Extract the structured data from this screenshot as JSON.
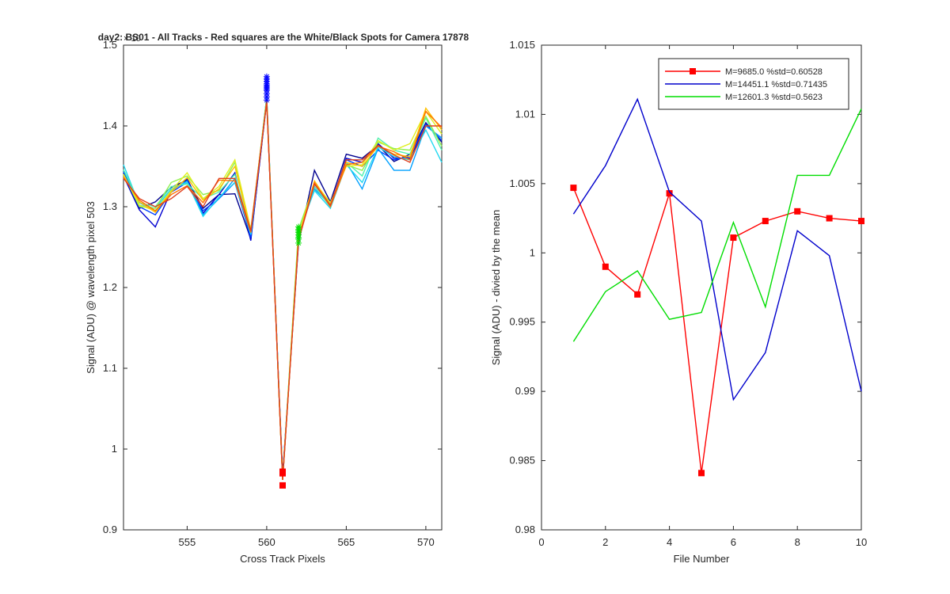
{
  "chart_data": [
    {
      "type": "line",
      "title": "day2: BS01 - All Tracks - Red squares are the  White/Black Spots for Camera 17878",
      "xlabel": "Cross Track Pixels",
      "ylabel": "Signal (ADU) @ wavelength pixel 503",
      "y_exponent_label": "× 10",
      "xlim": [
        551,
        571
      ],
      "ylim": [
        0.9,
        1.5
      ],
      "xticks": [
        555,
        560,
        565,
        570
      ],
      "yticks": [
        0.9,
        1.0,
        1.1,
        1.2,
        1.3,
        1.4,
        1.5
      ],
      "x": [
        551,
        552,
        553,
        554,
        555,
        556,
        557,
        558,
        559,
        560,
        561,
        562,
        563,
        564,
        565,
        566,
        567,
        568,
        569,
        570,
        571
      ],
      "series": [
        {
          "color": "#00008f",
          "values": [
            1.34,
            1.298,
            1.306,
            1.324,
            1.333,
            1.298,
            1.315,
            1.316,
            1.26,
            1.43,
            0.968,
            1.255,
            1.345,
            1.306,
            1.365,
            1.36,
            1.376,
            1.356,
            1.365,
            1.404,
            1.38
          ]
        },
        {
          "color": "#0000d0",
          "values": [
            1.338,
            1.296,
            1.275,
            1.32,
            1.335,
            1.292,
            1.315,
            1.342,
            1.258,
            1.432,
            0.965,
            1.26,
            1.33,
            1.3,
            1.36,
            1.355,
            1.378,
            1.36,
            1.36,
            1.4,
            1.385
          ]
        },
        {
          "color": "#0040ff",
          "values": [
            1.343,
            1.3,
            1.29,
            1.318,
            1.33,
            1.295,
            1.31,
            1.33,
            1.262,
            1.435,
            0.962,
            1.262,
            1.325,
            1.3,
            1.358,
            1.35,
            1.37,
            1.358,
            1.362,
            1.402,
            1.382
          ]
        },
        {
          "color": "#00a0ff",
          "values": [
            1.345,
            1.305,
            1.295,
            1.32,
            1.332,
            1.29,
            1.31,
            1.335,
            1.265,
            1.435,
            0.963,
            1.265,
            1.322,
            1.302,
            1.355,
            1.322,
            1.372,
            1.345,
            1.345,
            1.4,
            1.385
          ]
        },
        {
          "color": "#20d8f0",
          "values": [
            1.352,
            1.302,
            1.298,
            1.322,
            1.33,
            1.288,
            1.312,
            1.33,
            1.266,
            1.436,
            0.962,
            1.268,
            1.32,
            1.298,
            1.352,
            1.33,
            1.374,
            1.362,
            1.358,
            1.395,
            1.355
          ]
        },
        {
          "color": "#50f0b0",
          "values": [
            1.346,
            1.305,
            1.3,
            1.325,
            1.328,
            1.31,
            1.318,
            1.34,
            1.268,
            1.435,
            0.962,
            1.27,
            1.325,
            1.3,
            1.355,
            1.338,
            1.385,
            1.37,
            1.365,
            1.41,
            1.37
          ]
        },
        {
          "color": "#90f050",
          "values": [
            1.34,
            1.3,
            1.298,
            1.33,
            1.338,
            1.315,
            1.32,
            1.355,
            1.27,
            1.433,
            0.963,
            1.272,
            1.328,
            1.303,
            1.352,
            1.345,
            1.38,
            1.372,
            1.37,
            1.412,
            1.375
          ]
        },
        {
          "color": "#e0f020",
          "values": [
            1.34,
            1.302,
            1.295,
            1.32,
            1.342,
            1.31,
            1.325,
            1.358,
            1.272,
            1.432,
            0.962,
            1.265,
            1.33,
            1.305,
            1.35,
            1.352,
            1.382,
            1.37,
            1.378,
            1.418,
            1.39
          ]
        },
        {
          "color": "#ffc000",
          "values": [
            1.338,
            1.306,
            1.293,
            1.318,
            1.336,
            1.308,
            1.322,
            1.35,
            1.27,
            1.432,
            0.962,
            1.262,
            1.332,
            1.302,
            1.355,
            1.35,
            1.375,
            1.365,
            1.362,
            1.422,
            1.395
          ]
        },
        {
          "color": "#ff7000",
          "values": [
            1.336,
            1.308,
            1.295,
            1.315,
            1.326,
            1.305,
            1.333,
            1.332,
            1.268,
            1.43,
            0.962,
            1.26,
            1.33,
            1.3,
            1.352,
            1.355,
            1.375,
            1.368,
            1.358,
            1.418,
            1.398
          ]
        },
        {
          "color": "#e04020",
          "values": [
            1.335,
            1.31,
            1.3,
            1.31,
            1.325,
            1.3,
            1.335,
            1.335,
            1.27,
            1.43,
            0.962,
            1.258,
            1.328,
            1.302,
            1.358,
            1.358,
            1.376,
            1.364,
            1.355,
            1.4,
            1.4
          ]
        }
      ],
      "blue_star_markers": {
        "x": 560,
        "values": [
          1.432,
          1.436,
          1.44,
          1.444,
          1.446,
          1.448,
          1.45,
          1.452,
          1.455,
          1.458,
          1.461
        ]
      },
      "green_star_markers": {
        "x": 562,
        "values": [
          1.255,
          1.26,
          1.262,
          1.265,
          1.268,
          1.27,
          1.272,
          1.275
        ]
      },
      "red_square_markers": {
        "x": 561,
        "values": [
          0.955,
          0.97,
          0.972
        ]
      }
    },
    {
      "type": "line",
      "title": "",
      "xlabel": "File Number",
      "ylabel": "Signal (ADU) - divied by the mean",
      "xlim": [
        0,
        10
      ],
      "ylim": [
        0.98,
        1.015
      ],
      "xticks": [
        0,
        2,
        4,
        6,
        8,
        10
      ],
      "yticks": [
        0.98,
        0.985,
        0.99,
        0.995,
        1.0,
        1.005,
        1.01,
        1.015
      ],
      "legend_position": "top-right",
      "series": [
        {
          "name": "M=9685.0 %std=0.60528",
          "color": "#ff0000",
          "marker": "square",
          "x": [
            1,
            2,
            3,
            4,
            5,
            6,
            7,
            8,
            9,
            10
          ],
          "values": [
            1.0047,
            0.999,
            0.997,
            1.0043,
            0.9841,
            1.0011,
            1.0023,
            1.003,
            1.0025,
            1.0023
          ]
        },
        {
          "name": "M=14451.1 %std=0.71435",
          "color": "#0000cc",
          "marker": "none",
          "x": [
            1,
            2,
            3,
            4,
            5,
            6,
            7,
            8,
            9,
            10
          ],
          "values": [
            1.0028,
            1.0063,
            1.0111,
            1.0044,
            1.0023,
            0.9894,
            0.9928,
            1.0016,
            0.9998,
            0.99
          ]
        },
        {
          "name": "M=12601.3 %std=0.5623",
          "color": "#00dd00",
          "marker": "none",
          "x": [
            1,
            2,
            3,
            4,
            5,
            6,
            7,
            8,
            9,
            10
          ],
          "values": [
            0.9936,
            0.9972,
            0.9987,
            0.9952,
            0.9957,
            1.0022,
            0.9961,
            1.0056,
            1.0056,
            1.0104
          ]
        }
      ]
    }
  ]
}
